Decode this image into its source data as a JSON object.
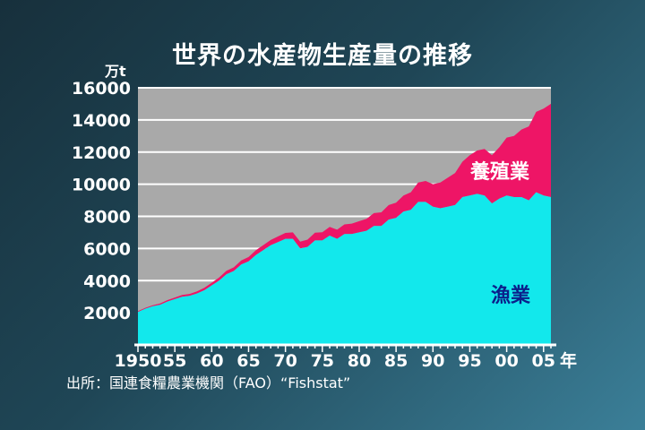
{
  "chart_data": {
    "type": "area",
    "stacked": true,
    "title": "世界の水産物生産量の推移",
    "ylabel": "万t",
    "xlabel": "年",
    "ylim": [
      0,
      16000
    ],
    "xlim": [
      1950,
      2006
    ],
    "y_ticks": [
      "16000",
      "14000",
      "12000",
      "10000",
      "8000",
      "6000",
      "4000",
      "2000"
    ],
    "y_tick_values": [
      16000,
      14000,
      12000,
      10000,
      8000,
      6000,
      4000,
      2000
    ],
    "x_ticks": [
      "1950",
      "55",
      "60",
      "65",
      "70",
      "75",
      "80",
      "85",
      "90",
      "95",
      "00",
      "05"
    ],
    "x_tick_values": [
      1950,
      1955,
      1960,
      1965,
      1970,
      1975,
      1980,
      1985,
      1990,
      1995,
      2000,
      2005
    ],
    "x": [
      1950,
      1951,
      1952,
      1953,
      1954,
      1955,
      1956,
      1957,
      1958,
      1959,
      1960,
      1961,
      1962,
      1963,
      1964,
      1965,
      1966,
      1967,
      1968,
      1969,
      1970,
      1971,
      1972,
      1973,
      1974,
      1975,
      1976,
      1977,
      1978,
      1979,
      1980,
      1981,
      1982,
      1983,
      1984,
      1985,
      1986,
      1987,
      1988,
      1989,
      1990,
      1991,
      1992,
      1993,
      1994,
      1995,
      1996,
      1997,
      1998,
      1999,
      2000,
      2001,
      2002,
      2003,
      2004,
      2005,
      2006
    ],
    "series": [
      {
        "name": "漁業",
        "color": "#12e8ec",
        "values": [
          2050,
          2250,
          2400,
          2500,
          2700,
          2850,
          3000,
          3050,
          3200,
          3400,
          3700,
          4000,
          4400,
          4600,
          5000,
          5200,
          5600,
          5900,
          6200,
          6400,
          6600,
          6600,
          6000,
          6100,
          6500,
          6500,
          6800,
          6600,
          6900,
          6900,
          7000,
          7100,
          7400,
          7400,
          7800,
          7900,
          8300,
          8400,
          8900,
          8900,
          8600,
          8500,
          8600,
          8700,
          9200,
          9300,
          9400,
          9300,
          8800,
          9100,
          9300,
          9200,
          9200,
          9000,
          9500,
          9300,
          9200
        ]
      },
      {
        "name": "養殖業",
        "color": "#ee1566",
        "values": [
          50,
          60,
          70,
          80,
          90,
          100,
          110,
          120,
          130,
          150,
          170,
          190,
          210,
          230,
          250,
          270,
          290,
          310,
          330,
          350,
          370,
          400,
          420,
          450,
          480,
          510,
          540,
          570,
          600,
          650,
          700,
          750,
          800,
          850,
          900,
          950,
          1000,
          1100,
          1200,
          1300,
          1400,
          1600,
          1800,
          2000,
          2200,
          2500,
          2700,
          2900,
          3000,
          3200,
          3600,
          3800,
          4200,
          4600,
          5000,
          5400,
          5800
        ]
      }
    ],
    "grid": true,
    "legend": "inline"
  },
  "labels": {
    "title": "世界の水産物生産量の推移",
    "unit": "万t",
    "x_unit": "年",
    "source": "出所：国連食糧農業機関（FAO）“Fishstat”",
    "series_aqua": "養殖業",
    "series_fish": "漁業"
  }
}
